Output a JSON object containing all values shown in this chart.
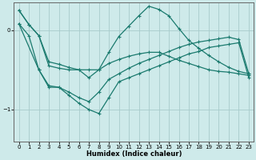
{
  "xlabel": "Humidex (Indice chaleur)",
  "bg_color": "#ceeaea",
  "grid_color": "#a8cccc",
  "line_color": "#1a7a6e",
  "xlim": [
    -0.5,
    23.5
  ],
  "ylim": [
    -1.4,
    0.35
  ],
  "yticks": [
    0,
    -1
  ],
  "xticks": [
    0,
    1,
    2,
    3,
    4,
    5,
    6,
    7,
    8,
    9,
    10,
    11,
    12,
    13,
    14,
    15,
    16,
    17,
    18,
    19,
    20,
    21,
    22,
    23
  ],
  "line1_x": [
    0,
    1,
    2,
    3,
    4,
    5,
    6,
    7,
    8,
    9,
    10,
    11,
    12,
    13,
    14,
    15,
    16,
    17,
    18,
    19,
    20,
    21,
    22,
    23
  ],
  "line1_y": [
    0.25,
    0.07,
    -0.07,
    -0.45,
    -0.48,
    -0.5,
    -0.5,
    -0.5,
    -0.5,
    -0.42,
    -0.37,
    -0.33,
    -0.3,
    -0.28,
    -0.28,
    -0.33,
    -0.38,
    -0.42,
    -0.46,
    -0.5,
    -0.52,
    -0.53,
    -0.55,
    -0.57
  ],
  "line2_x": [
    0,
    1,
    2,
    3,
    4,
    5,
    6,
    7,
    8,
    9,
    10,
    11,
    12,
    13,
    14,
    15,
    16,
    17,
    18,
    19,
    20,
    21,
    22,
    23
  ],
  "line2_y": [
    0.25,
    0.07,
    -0.07,
    -0.4,
    -0.43,
    -0.47,
    -0.5,
    -0.6,
    -0.5,
    -0.28,
    -0.08,
    0.05,
    0.18,
    0.3,
    0.26,
    0.18,
    0.02,
    -0.13,
    -0.23,
    -0.32,
    -0.4,
    -0.47,
    -0.52,
    -0.55
  ],
  "line3_x": [
    0,
    1,
    2,
    3,
    4,
    5,
    6,
    7,
    8,
    9,
    10,
    11,
    12,
    13,
    14,
    15,
    16,
    17,
    18,
    19,
    20,
    21,
    22,
    23
  ],
  "line3_y": [
    0.08,
    -0.07,
    -0.5,
    -0.7,
    -0.72,
    -0.78,
    -0.85,
    -0.9,
    -0.78,
    -0.62,
    -0.55,
    -0.48,
    -0.42,
    -0.37,
    -0.32,
    -0.27,
    -0.22,
    -0.18,
    -0.15,
    -0.13,
    -0.11,
    -0.09,
    -0.12,
    -0.55
  ],
  "line4_x": [
    0,
    2,
    3,
    4,
    5,
    6,
    7,
    8,
    9,
    10,
    11,
    12,
    13,
    14,
    15,
    16,
    17,
    18,
    19,
    20,
    21,
    22,
    23
  ],
  "line4_y": [
    0.08,
    -0.5,
    -0.72,
    -0.72,
    -0.82,
    -0.92,
    -1.0,
    -1.05,
    -0.85,
    -0.65,
    -0.6,
    -0.55,
    -0.5,
    -0.45,
    -0.4,
    -0.35,
    -0.3,
    -0.27,
    -0.22,
    -0.2,
    -0.18,
    -0.16,
    -0.6
  ]
}
